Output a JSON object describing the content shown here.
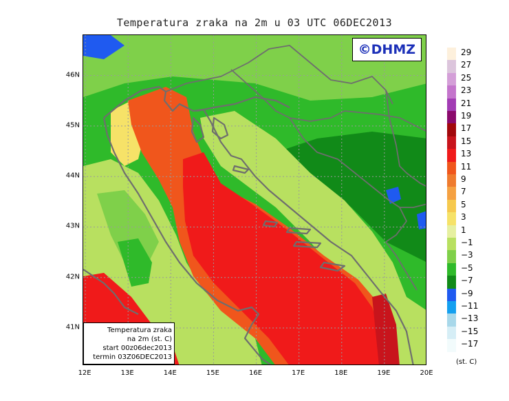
{
  "title": "Temperatura zraka na 2m u 03 UTC 06DEC2013",
  "copyright": "©DHMZ",
  "infobox": {
    "line1": "Temperatura zraka",
    "line2": "na 2m (st. C)",
    "line3": "start 00z06dec2013",
    "line4": "termin 03Z06DEC2013"
  },
  "map": {
    "lat_labels": [
      "46N",
      "45N",
      "44N",
      "43N",
      "42N",
      "41N"
    ],
    "lon_labels": [
      "12E",
      "13E",
      "14E",
      "15E",
      "16E",
      "17E",
      "18E",
      "19E",
      "20E"
    ],
    "lat_values": [
      46,
      45,
      44,
      43,
      42,
      41
    ],
    "lon_values": [
      12,
      13,
      14,
      15,
      16,
      17,
      18,
      19,
      20
    ],
    "extent": {
      "lon_min": 11.95,
      "lon_max": 20.0,
      "lat_min": 40.25,
      "lat_max": 46.8
    }
  },
  "legend": {
    "labels": [
      "29",
      "27",
      "25",
      "23",
      "21",
      "19",
      "17",
      "15",
      "13",
      "11",
      "9",
      "7",
      "5",
      "3",
      "1",
      "−1",
      "−3",
      "−5",
      "−7",
      "−9",
      "−11",
      "−13",
      "−15",
      "−17"
    ],
    "colors": [
      "#fdf0dc",
      "#dcc5dc",
      "#d49fd8",
      "#c475cc",
      "#a23cb4",
      "#8a0a6c",
      "#a2080c",
      "#c8141c",
      "#f01a1a",
      "#f0561c",
      "#ef7b2e",
      "#f5a142",
      "#f6c94e",
      "#f6e268",
      "#e6f0a0",
      "#b8e060",
      "#7fd04a",
      "#2fba2a",
      "#118a18",
      "#1f5af0",
      "#14a0f0",
      "#a8d8ea",
      "#d6eef6",
      "#f2fbfc"
    ],
    "units": "(st. C)"
  }
}
